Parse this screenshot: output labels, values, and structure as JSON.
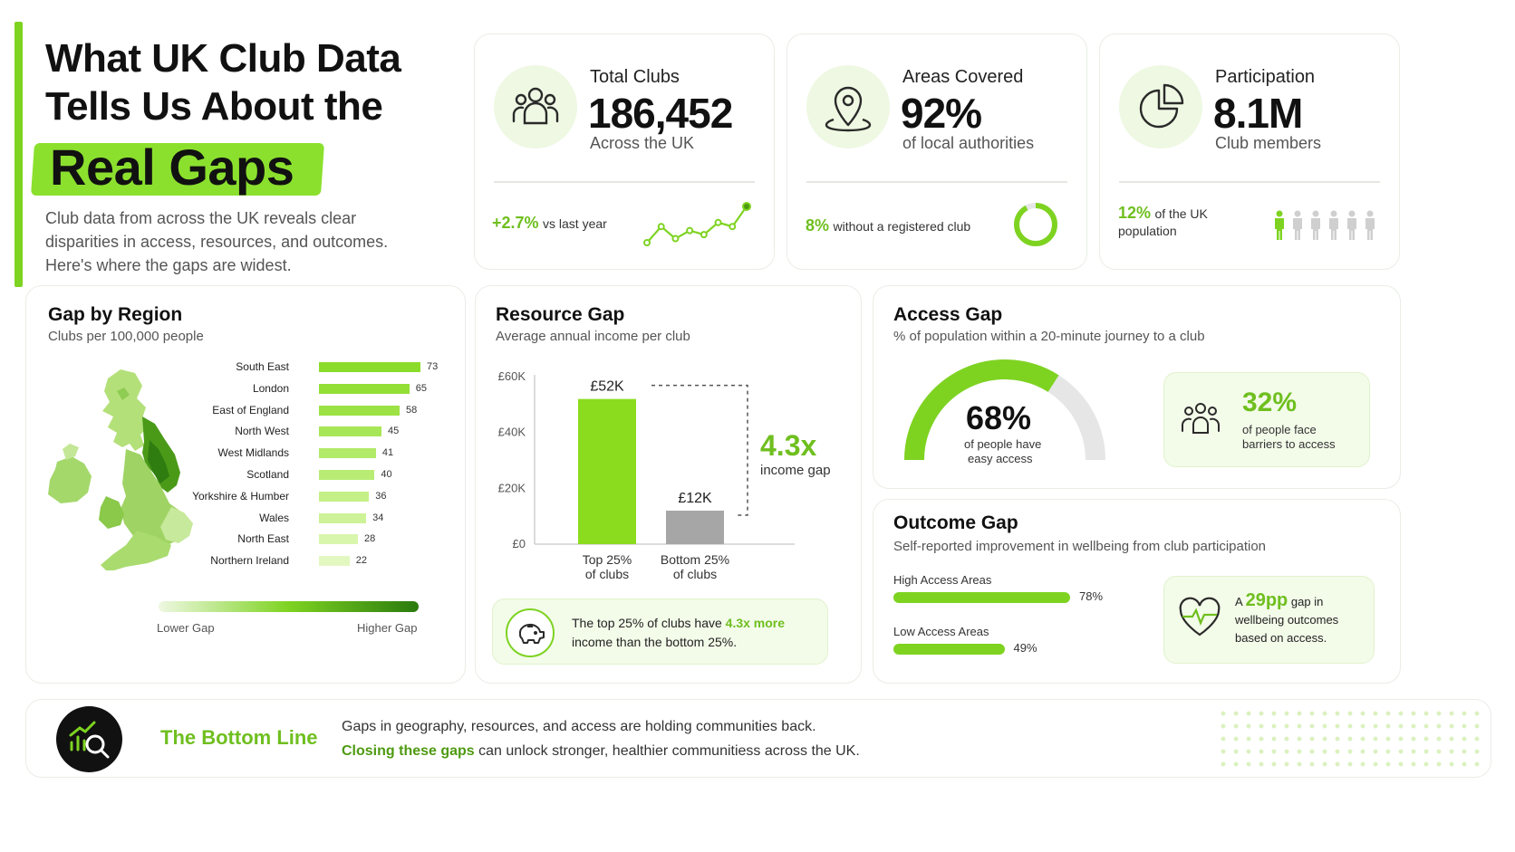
{
  "hero": {
    "title_line1": "What UK Club Data",
    "title_line2": "Tells Us About the",
    "title_highlight": "Real Gaps",
    "subtitle": "Club data from across the UK reveals clear disparities in access, resources, and outcomes. Here's where the gaps are widest."
  },
  "stats": {
    "total_clubs": {
      "label": "Total Clubs",
      "value": "186,452",
      "sub": "Across the UK",
      "change": "+2.7%",
      "change_text": "vs last year",
      "icon": "people-group-icon",
      "trend": [
        3,
        7,
        4,
        6,
        5,
        8,
        7,
        12
      ]
    },
    "areas_covered": {
      "label": "Areas Covered",
      "value": "92%",
      "sub": "of local authorities",
      "stat_highlight": "8%",
      "stat_text": "without a registered club",
      "icon": "map-pin-icon",
      "donut_fraction": 0.92
    },
    "participation": {
      "label": "Participation",
      "value": "8.1M",
      "sub": "Club members",
      "stat_highlight": "12%",
      "stat_text_1": "of the UK",
      "stat_text_2": "population",
      "icon": "pie-chart-icon",
      "figures_total": 6,
      "figures_highlighted": 1
    }
  },
  "region": {
    "title": "Gap by Region",
    "subtitle": "Clubs per 100,000 people",
    "legend_low": "Lower Gap",
    "legend_high": "Higher Gap"
  },
  "resource": {
    "title": "Resource Gap",
    "subtitle": "Average annual income per club",
    "multiplier": "4.3x",
    "multiplier_text": "income gap",
    "note_pre": "The top 25% of clubs have",
    "note_highlight": "4.3x more",
    "note_post": "income than the bottom 25%.",
    "icon": "piggy-bank-icon"
  },
  "access": {
    "title": "Access Gap",
    "subtitle": "% of population within a 20-minute journey to a club",
    "gauge_value": "68%",
    "gauge_fraction": 0.68,
    "gauge_text_1": "of people have",
    "gauge_text_2": "easy access",
    "barrier_value": "32%",
    "barrier_text_1": "of people face",
    "barrier_text_2": "barriers to access",
    "icon": "people-group-icon"
  },
  "outcome": {
    "title": "Outcome Gap",
    "subtitle": "Self-reported improvement in wellbeing from club participation",
    "rows": [
      {
        "label": "High Access Areas",
        "value": 78,
        "display": "78%"
      },
      {
        "label": "Low Access Areas",
        "value": 49,
        "display": "49%"
      }
    ],
    "gap_pre": "A",
    "gap_value": "29pp",
    "gap_text_1": "gap in",
    "gap_text_2": "wellbeing outcomes",
    "gap_text_3": "based on access.",
    "icon": "heart-pulse-icon"
  },
  "bottom": {
    "title": "The Bottom Line",
    "line1": "Gaps in geography, resources, and access are holding communities back.",
    "line2_highlight": "Closing these gaps",
    "line2_rest": "can unlock stronger, healthier communitiess across the UK.",
    "icon": "chart-magnifier-icon"
  },
  "colors": {
    "accent": "#7ed321",
    "accent_dark": "#5aa810",
    "grey_bar": "#a9a9a9",
    "light_bg": "#f3fbe9"
  },
  "chart_data": [
    {
      "type": "bar",
      "orientation": "horizontal",
      "title": "Gap by Region",
      "subtitle": "Clubs per 100,000 people",
      "categories": [
        "South East",
        "London",
        "East of England",
        "North West",
        "West Midlands",
        "Scotland",
        "Yorkshire & Humber",
        "Wales",
        "North East",
        "Northern Ireland"
      ],
      "values": [
        73,
        65,
        58,
        45,
        41,
        40,
        36,
        34,
        28,
        22
      ]
    },
    {
      "type": "bar",
      "title": "Resource Gap",
      "subtitle": "Average annual income per club",
      "categories": [
        "Top 25% of clubs",
        "Bottom 25% of clubs"
      ],
      "cat_line1": [
        "Top 25%",
        "Bottom 25%"
      ],
      "cat_line2": [
        "of clubs",
        "of clubs"
      ],
      "values": [
        52,
        12
      ],
      "value_labels": [
        "£52K",
        "£12K"
      ],
      "yticks": [
        "£0",
        "£20K",
        "£40K",
        "£60K"
      ],
      "ylim": [
        0,
        60
      ]
    }
  ]
}
